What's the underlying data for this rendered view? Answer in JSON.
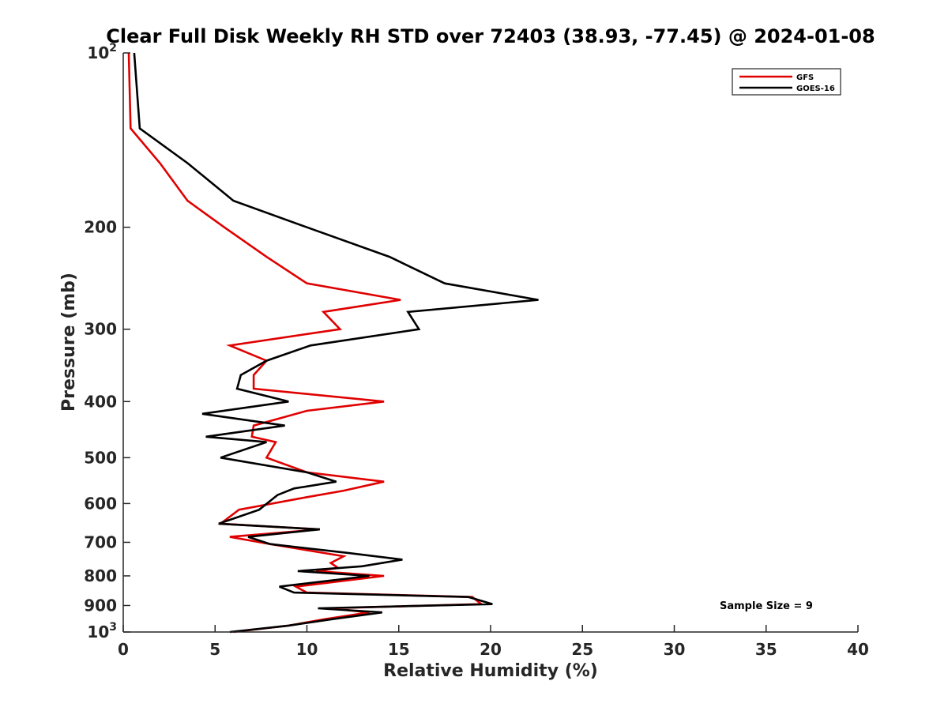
{
  "chart_data": {
    "type": "line",
    "title": "Clear Full Disk Weekly RH STD over 72403 (38.93, -77.45) @ 2024-01-08",
    "xlabel": "Relative Humidity (%)",
    "ylabel": "Pressure (mb)",
    "xlim": [
      0,
      40
    ],
    "ylim": [
      100,
      1000
    ],
    "y_scale": "log",
    "y_reversed": true,
    "x_ticks": [
      "0",
      "5",
      "10",
      "15",
      "20",
      "25",
      "30",
      "35",
      "40"
    ],
    "y_ticks": [
      {
        "value": 100,
        "label": "10",
        "sup": "2"
      },
      {
        "value": 200,
        "label": "200",
        "sup": ""
      },
      {
        "value": 300,
        "label": "300",
        "sup": ""
      },
      {
        "value": 400,
        "label": "400",
        "sup": ""
      },
      {
        "value": 500,
        "label": "500",
        "sup": ""
      },
      {
        "value": 600,
        "label": "600",
        "sup": ""
      },
      {
        "value": 700,
        "label": "700",
        "sup": ""
      },
      {
        "value": 800,
        "label": "800",
        "sup": ""
      },
      {
        "value": 900,
        "label": "900",
        "sup": ""
      },
      {
        "value": 1000,
        "label": "10",
        "sup": "3"
      }
    ],
    "grid": false,
    "legend_position": "top-right",
    "annotation": "Sample Size = 9",
    "series": [
      {
        "name": "GFS",
        "color": "#e00000",
        "points": [
          [
            0.3,
            100
          ],
          [
            0.4,
            135
          ],
          [
            2.0,
            155
          ],
          [
            3.5,
            180
          ],
          [
            5.5,
            200
          ],
          [
            7.8,
            225
          ],
          [
            10.0,
            250
          ],
          [
            15.1,
            267
          ],
          [
            10.9,
            280
          ],
          [
            11.8,
            300
          ],
          [
            5.8,
            320
          ],
          [
            7.8,
            340
          ],
          [
            7.1,
            360
          ],
          [
            7.1,
            380
          ],
          [
            14.2,
            400
          ],
          [
            10.0,
            415
          ],
          [
            7.1,
            440
          ],
          [
            7.0,
            460
          ],
          [
            8.3,
            470
          ],
          [
            7.8,
            500
          ],
          [
            10.0,
            530
          ],
          [
            14.2,
            550
          ],
          [
            12.0,
            570
          ],
          [
            10.0,
            585
          ],
          [
            6.3,
            615
          ],
          [
            5.3,
            650
          ],
          [
            10.7,
            665
          ],
          [
            5.8,
            685
          ],
          [
            8.0,
            705
          ],
          [
            12.0,
            740
          ],
          [
            11.3,
            760
          ],
          [
            11.7,
            775
          ],
          [
            10.5,
            785
          ],
          [
            14.2,
            800
          ],
          [
            9.4,
            835
          ],
          [
            10.0,
            855
          ],
          [
            19.0,
            870
          ],
          [
            19.5,
            895
          ],
          [
            11.2,
            910
          ],
          [
            13.4,
            925
          ],
          [
            11.0,
            950
          ],
          [
            9.0,
            975
          ],
          [
            6.0,
            1000
          ]
        ]
      },
      {
        "name": "GOES-16",
        "color": "#000000",
        "points": [
          [
            0.6,
            100
          ],
          [
            0.9,
            135
          ],
          [
            3.5,
            155
          ],
          [
            6.0,
            180
          ],
          [
            10.0,
            200
          ],
          [
            14.5,
            225
          ],
          [
            17.5,
            250
          ],
          [
            22.6,
            267
          ],
          [
            15.5,
            280
          ],
          [
            16.1,
            300
          ],
          [
            10.2,
            320
          ],
          [
            7.8,
            340
          ],
          [
            6.4,
            360
          ],
          [
            6.2,
            380
          ],
          [
            9.0,
            400
          ],
          [
            4.3,
            420
          ],
          [
            8.8,
            440
          ],
          [
            4.5,
            460
          ],
          [
            7.8,
            470
          ],
          [
            5.3,
            500
          ],
          [
            10.0,
            530
          ],
          [
            11.6,
            550
          ],
          [
            9.3,
            565
          ],
          [
            8.4,
            580
          ],
          [
            7.4,
            615
          ],
          [
            5.2,
            650
          ],
          [
            10.7,
            665
          ],
          [
            6.8,
            685
          ],
          [
            8.0,
            705
          ],
          [
            12.2,
            730
          ],
          [
            15.2,
            750
          ],
          [
            13.0,
            770
          ],
          [
            9.5,
            785
          ],
          [
            13.4,
            800
          ],
          [
            8.5,
            835
          ],
          [
            9.3,
            855
          ],
          [
            18.8,
            870
          ],
          [
            20.1,
            895
          ],
          [
            10.6,
            910
          ],
          [
            14.1,
            925
          ],
          [
            11.4,
            950
          ],
          [
            9.0,
            975
          ],
          [
            5.8,
            1000
          ]
        ]
      }
    ]
  }
}
